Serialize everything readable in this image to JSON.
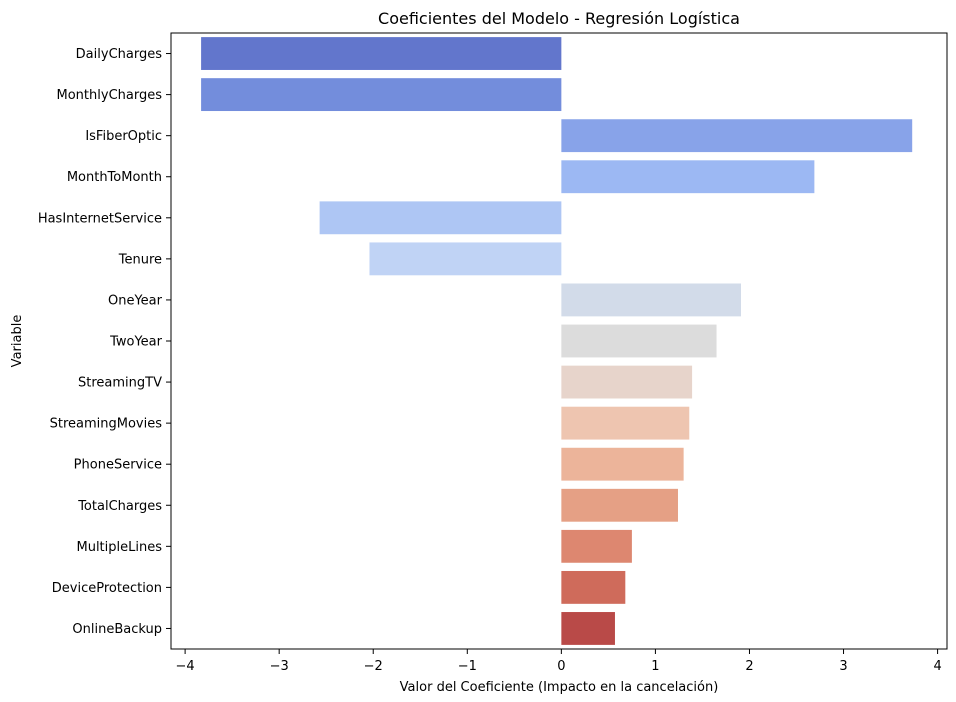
{
  "chart_data": {
    "type": "bar",
    "orientation": "horizontal",
    "title": "Coeficientes del Modelo - Regresión Logística",
    "xlabel": "Valor del Coeficiente (Impacto en la cancelación)",
    "ylabel": "Variable",
    "xlim": [
      -4.15,
      4.1
    ],
    "xticks": [
      -4,
      -3,
      -2,
      -1,
      0,
      1,
      2,
      3,
      4
    ],
    "xtick_labels": [
      "−4",
      "−3",
      "−2",
      "−1",
      "0",
      "1",
      "2",
      "3",
      "4"
    ],
    "grid": false,
    "categories": [
      "DailyCharges",
      "MonthlyCharges",
      "IsFiberOptic",
      "MonthToMonth",
      "HasInternetService",
      "Tenure",
      "OneYear",
      "TwoYear",
      "StreamingTV",
      "StreamingMovies",
      "PhoneService",
      "TotalCharges",
      "MultipleLines",
      "DeviceProtection",
      "OnlineBackup"
    ],
    "values": [
      -3.83,
      -3.83,
      3.73,
      2.69,
      -2.57,
      -2.04,
      1.91,
      1.65,
      1.39,
      1.36,
      1.3,
      1.24,
      0.75,
      0.68,
      0.57
    ],
    "colors": [
      "#6276cc",
      "#738ddc",
      "#88a3e9",
      "#9cb8f3",
      "#aec6f4",
      "#c0d3f5",
      "#d2dbe9",
      "#dcdcdc",
      "#e7d4cb",
      "#eec5b0",
      "#ecb49a",
      "#e5a085",
      "#dd8770",
      "#cf6b5b",
      "#b94a48"
    ]
  }
}
